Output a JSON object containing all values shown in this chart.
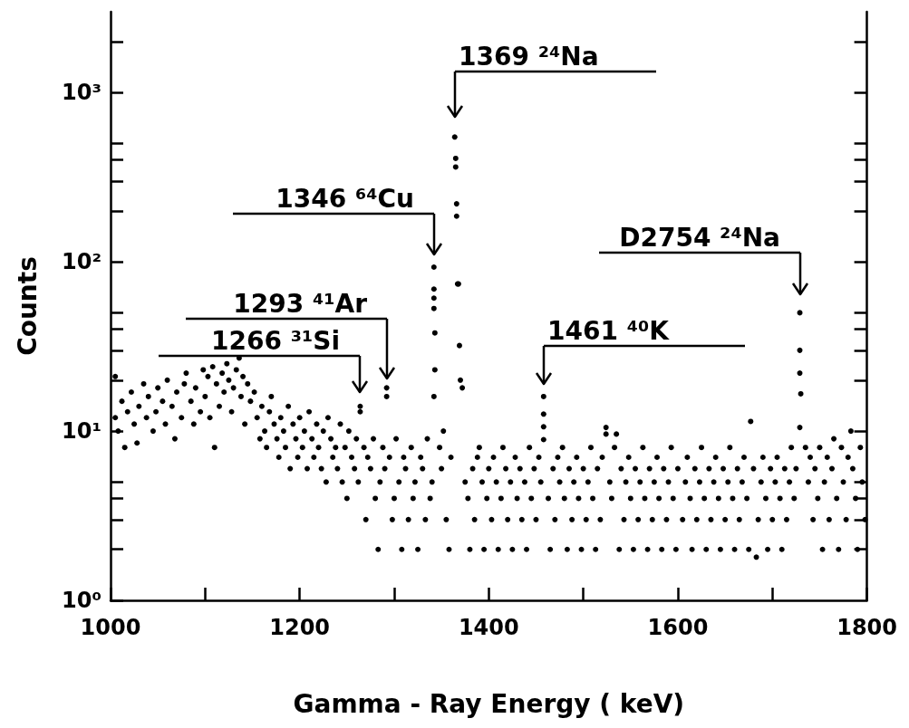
{
  "chart_data": {
    "type": "scatter",
    "xlabel": "Gamma - Ray Energy ( keV)",
    "ylabel": "Counts",
    "log": true,
    "marker": "circle",
    "color": "#000000",
    "xlim": [
      1000,
      1800
    ],
    "xticks": [
      1000,
      {
        "value": 1100,
        "label": null
      },
      1200,
      {
        "value": 1300,
        "label": null
      },
      1400,
      {
        "value": 1500,
        "label": null
      },
      1600,
      {
        "value": 1700,
        "label": null
      },
      1800
    ],
    "ylim": [
      1,
      3000
    ],
    "yticks": [
      {
        "value": 1,
        "label": "10⁰"
      },
      {
        "value": 2,
        "label": null
      },
      {
        "value": 3,
        "label": null
      },
      {
        "value": 4,
        "label": null
      },
      {
        "value": 5,
        "label": null
      },
      {
        "value": 10,
        "label": "10¹"
      },
      {
        "value": 20,
        "label": null
      },
      {
        "value": 30,
        "label": null
      },
      {
        "value": 40,
        "label": null
      },
      {
        "value": 50,
        "label": null
      },
      {
        "value": 100,
        "label": "10²"
      },
      {
        "value": 200,
        "label": null
      },
      {
        "value": 300,
        "label": null
      },
      {
        "value": 400,
        "label": null
      },
      {
        "value": 500,
        "label": null
      },
      {
        "value": 1000,
        "label": "10³"
      },
      {
        "value": 2000,
        "label": null
      }
    ],
    "annotations": [
      {
        "text": "1266 ³¹Si",
        "x": 1264,
        "y": 14
      },
      {
        "text": "1293 ⁴¹Ar",
        "x": 1292,
        "y": 18
      },
      {
        "text": "1346 ⁶⁴Cu",
        "x": 1342,
        "y": 93
      },
      {
        "text": "1369 ²⁴Na",
        "x": 1364,
        "y": 546
      },
      {
        "text": "1461 ⁴⁰K",
        "x": 1458,
        "y": 16
      },
      {
        "text": "D2754 ²⁴Na",
        "x": 1729,
        "y": 50
      }
    ],
    "x": [
      1364,
      1365,
      1365,
      1366,
      1366,
      1367,
      1368,
      1369,
      1370,
      1372,
      1342,
      1342,
      1342,
      1342,
      1343,
      1343,
      1342,
      1292,
      1292,
      1264,
      1264,
      1458,
      1458,
      1458,
      1458,
      1729,
      1729,
      1729,
      1730,
      1729,
      1524,
      1524,
      1535,
      1677,
      1683,
      1005,
      1005,
      1008,
      1012,
      1015,
      1018,
      1022,
      1025,
      1028,
      1030,
      1035,
      1038,
      1040,
      1045,
      1048,
      1050,
      1055,
      1058,
      1060,
      1065,
      1068,
      1070,
      1075,
      1078,
      1080,
      1085,
      1088,
      1090,
      1095,
      1098,
      1100,
      1103,
      1105,
      1108,
      1110,
      1112,
      1115,
      1118,
      1120,
      1123,
      1125,
      1128,
      1130,
      1133,
      1136,
      1138,
      1140,
      1142,
      1145,
      1148,
      1152,
      1155,
      1158,
      1160,
      1163,
      1165,
      1168,
      1170,
      1173,
      1176,
      1178,
      1180,
      1183,
      1185,
      1188,
      1190,
      1193,
      1196,
      1198,
      1200,
      1203,
      1205,
      1208,
      1210,
      1213,
      1215,
      1218,
      1220,
      1223,
      1225,
      1228,
      1230,
      1233,
      1235,
      1238,
      1240,
      1243,
      1245,
      1248,
      1250,
      1252,
      1255,
      1258,
      1260,
      1262,
      1268,
      1270,
      1272,
      1275,
      1278,
      1280,
      1283,
      1285,
      1288,
      1290,
      1295,
      1298,
      1300,
      1302,
      1305,
      1308,
      1310,
      1312,
      1315,
      1318,
      1320,
      1322,
      1325,
      1328,
      1330,
      1333,
      1335,
      1338,
      1340,
      1348,
      1350,
      1352,
      1355,
      1358,
      1360,
      1375,
      1378,
      1380,
      1383,
      1385,
      1388,
      1390,
      1393,
      1395,
      1398,
      1400,
      1403,
      1405,
      1408,
      1410,
      1413,
      1415,
      1418,
      1420,
      1423,
      1425,
      1428,
      1430,
      1433,
      1435,
      1438,
      1440,
      1443,
      1445,
      1448,
      1450,
      1453,
      1455,
      1463,
      1465,
      1468,
      1470,
      1473,
      1475,
      1478,
      1480,
      1483,
      1485,
      1488,
      1490,
      1493,
      1495,
      1498,
      1500,
      1503,
      1505,
      1508,
      1510,
      1513,
      1515,
      1518,
      1520,
      1528,
      1530,
      1533,
      1538,
      1540,
      1543,
      1545,
      1548,
      1550,
      1553,
      1555,
      1558,
      1560,
      1563,
      1565,
      1568,
      1570,
      1573,
      1575,
      1578,
      1580,
      1583,
      1585,
      1588,
      1590,
      1593,
      1595,
      1598,
      1600,
      1605,
      1608,
      1610,
      1613,
      1615,
      1618,
      1620,
      1623,
      1625,
      1628,
      1630,
      1633,
      1635,
      1638,
      1640,
      1643,
      1645,
      1648,
      1650,
      1653,
      1655,
      1658,
      1660,
      1663,
      1665,
      1668,
      1670,
      1673,
      1675,
      1680,
      1685,
      1688,
      1690,
      1693,
      1695,
      1698,
      1700,
      1703,
      1705,
      1708,
      1710,
      1713,
      1715,
      1718,
      1720,
      1723,
      1725,
      1735,
      1738,
      1740,
      1743,
      1745,
      1748,
      1750,
      1753,
      1755,
      1758,
      1760,
      1763,
      1765,
      1768,
      1770,
      1773,
      1775,
      1778,
      1780,
      1783,
      1785,
      1788,
      1790,
      1793,
      1795,
      1798
    ],
    "values": [
      546,
      408,
      363,
      220,
      186,
      74,
      74,
      32,
      20,
      18,
      93,
      69,
      61,
      53,
      38,
      23,
      16,
      18,
      16,
      14,
      13,
      16,
      12.6,
      10.6,
      8.9,
      50,
      30,
      22,
      16.6,
      10.5,
      10.5,
      9.6,
      9.6,
      11.4,
      1.8,
      21,
      12,
      10,
      15,
      8,
      13,
      17,
      11,
      8.5,
      14,
      19,
      12,
      16,
      10,
      13,
      18,
      15,
      11,
      20,
      14,
      9,
      17,
      12,
      19,
      22,
      15,
      11,
      18,
      13,
      23,
      16,
      21,
      12,
      24,
      8,
      19,
      14,
      22,
      17,
      25,
      20,
      13,
      18,
      23,
      27,
      16,
      21,
      11,
      19,
      15,
      17,
      12,
      9,
      14,
      10,
      8,
      13,
      16,
      11,
      9,
      7,
      12,
      10,
      8,
      14,
      6,
      11,
      9,
      7,
      12,
      8,
      10,
      6,
      13,
      9,
      7,
      11,
      8,
      6,
      10,
      5,
      12,
      9,
      7,
      8,
      6,
      11,
      5,
      8,
      4,
      10,
      7,
      6,
      9,
      5,
      8,
      3,
      7,
      6,
      9,
      4,
      2,
      5,
      8,
      6,
      7,
      3,
      4,
      9,
      5,
      2,
      7,
      6,
      3,
      8,
      4,
      5,
      2,
      7,
      6,
      3,
      9,
      4,
      5,
      8,
      6,
      10,
      3,
      2,
      7,
      5,
      4,
      2,
      6,
      3,
      7,
      8,
      5,
      2,
      4,
      6,
      3,
      7,
      5,
      2,
      4,
      8,
      6,
      3,
      5,
      2,
      7,
      4,
      6,
      3,
      5,
      2,
      8,
      4,
      6,
      3,
      7,
      5,
      4,
      2,
      6,
      3,
      7,
      5,
      8,
      4,
      2,
      6,
      3,
      5,
      7,
      4,
      2,
      6,
      3,
      5,
      8,
      4,
      2,
      6,
      3,
      7,
      5,
      4,
      8,
      2,
      6,
      3,
      5,
      7,
      4,
      2,
      6,
      3,
      5,
      8,
      4,
      2,
      6,
      3,
      5,
      7,
      4,
      2,
      6,
      3,
      5,
      8,
      4,
      2,
      6,
      3,
      5,
      7,
      4,
      2,
      6,
      3,
      5,
      8,
      4,
      2,
      6,
      3,
      5,
      7,
      4,
      2,
      6,
      3,
      5,
      8,
      4,
      2,
      6,
      3,
      5,
      7,
      4,
      2,
      6,
      3,
      5,
      7,
      4,
      2,
      6,
      3,
      5,
      7,
      4,
      2,
      6,
      3,
      5,
      8,
      4,
      6,
      8,
      5,
      7,
      3,
      6,
      4,
      8,
      2,
      5,
      7,
      3,
      6,
      9,
      4,
      2,
      8,
      5,
      3,
      7,
      10,
      6,
      4,
      2,
      8,
      5,
      3
    ]
  }
}
